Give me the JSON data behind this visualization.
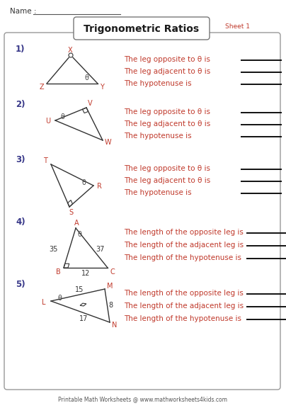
{
  "title": "Trigonometric Ratios",
  "sheet": "Sheet 1",
  "name_label": "Name :",
  "background": "#ffffff",
  "footer": "Printable Math Worksheets @ www.mathworksheets4kids.com",
  "text_color": "#c0392b",
  "number_color": "#3a3a8a",
  "problems": [
    {
      "num": "1)",
      "lines": [
        "The leg opposite to θ is",
        "The leg adjacent to θ is",
        "The hypotenuse is"
      ]
    },
    {
      "num": "2)",
      "lines": [
        "The leg opposite to θ is",
        "The leg adjacent to θ is",
        "The hypotenuse is"
      ]
    },
    {
      "num": "3)",
      "lines": [
        "The leg opposite to θ is",
        "The leg adjacent to θ is",
        "The hypotenuse is"
      ]
    },
    {
      "num": "4)",
      "lines": [
        "The length of the opposite leg is",
        "The length of the adjacent leg is",
        "The length of the hypotenuse is"
      ]
    },
    {
      "num": "5)",
      "lines": [
        "The length of the opposite leg is",
        "The length of the adjacent leg is",
        "The length of the hypotenuse is"
      ]
    }
  ]
}
